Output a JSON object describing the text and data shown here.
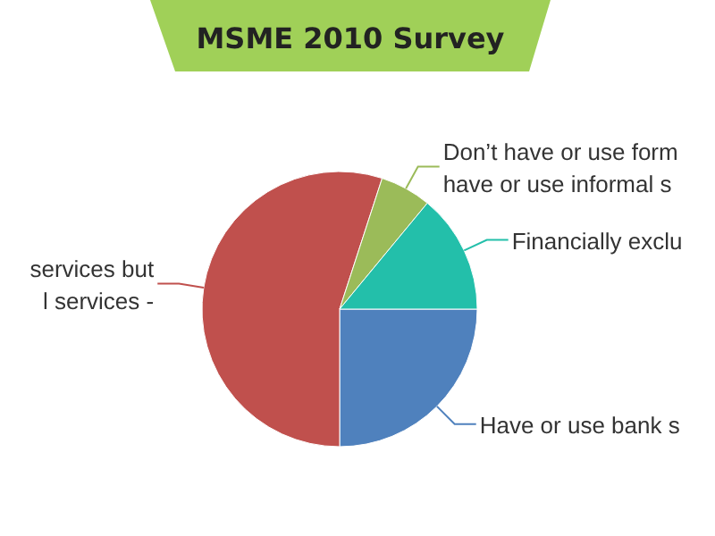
{
  "chart_data": {
    "type": "pie",
    "title": "MSME 2010 Survey",
    "categories": [
      "Have or use bank s",
      "services but\nl services -",
      "Don’t have or use form\nhave or use informal s",
      "Financially exclu"
    ],
    "values": [
      25,
      55,
      6,
      14
    ],
    "colors": [
      "#4f81bd",
      "#c0504d",
      "#9bbb59",
      "#23bfaa"
    ]
  }
}
